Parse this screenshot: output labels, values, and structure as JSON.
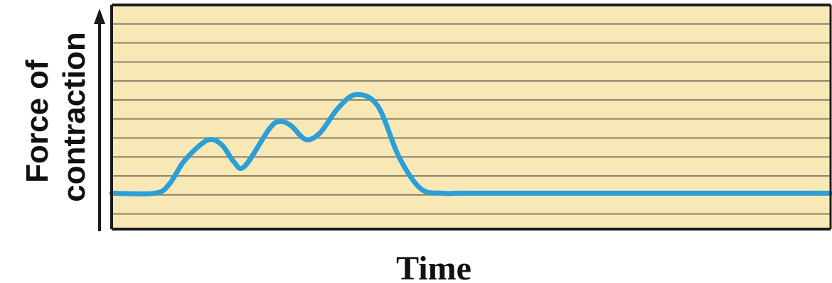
{
  "chart_data": {
    "type": "line",
    "xlabel": "Time",
    "ylabel_lines": [
      "Force of",
      "contraction"
    ],
    "xlim": [
      0,
      100
    ],
    "ylim": [
      0,
      100
    ],
    "grid": true,
    "grid_lines": 11,
    "series": [
      {
        "x": [
          0,
          6,
          8,
          10,
          12.5,
          14,
          15.5,
          17,
          18.5,
          22,
          23.5,
          25,
          27,
          29,
          31.5,
          34,
          37,
          40,
          43,
          46,
          48,
          50,
          53,
          60,
          70,
          80,
          90,
          100
        ],
        "y": [
          16,
          16,
          20,
          30,
          38,
          40,
          37,
          30,
          28,
          45,
          48,
          46,
          40,
          43,
          54,
          60,
          55,
          32,
          18,
          16,
          16,
          16,
          16,
          16,
          16,
          16,
          16,
          16
        ]
      }
    ]
  },
  "colors": {
    "background": "#f7e8b5",
    "grid": "#8a8169",
    "frame": "#1a1a1a",
    "line": "#2a9fd8"
  }
}
